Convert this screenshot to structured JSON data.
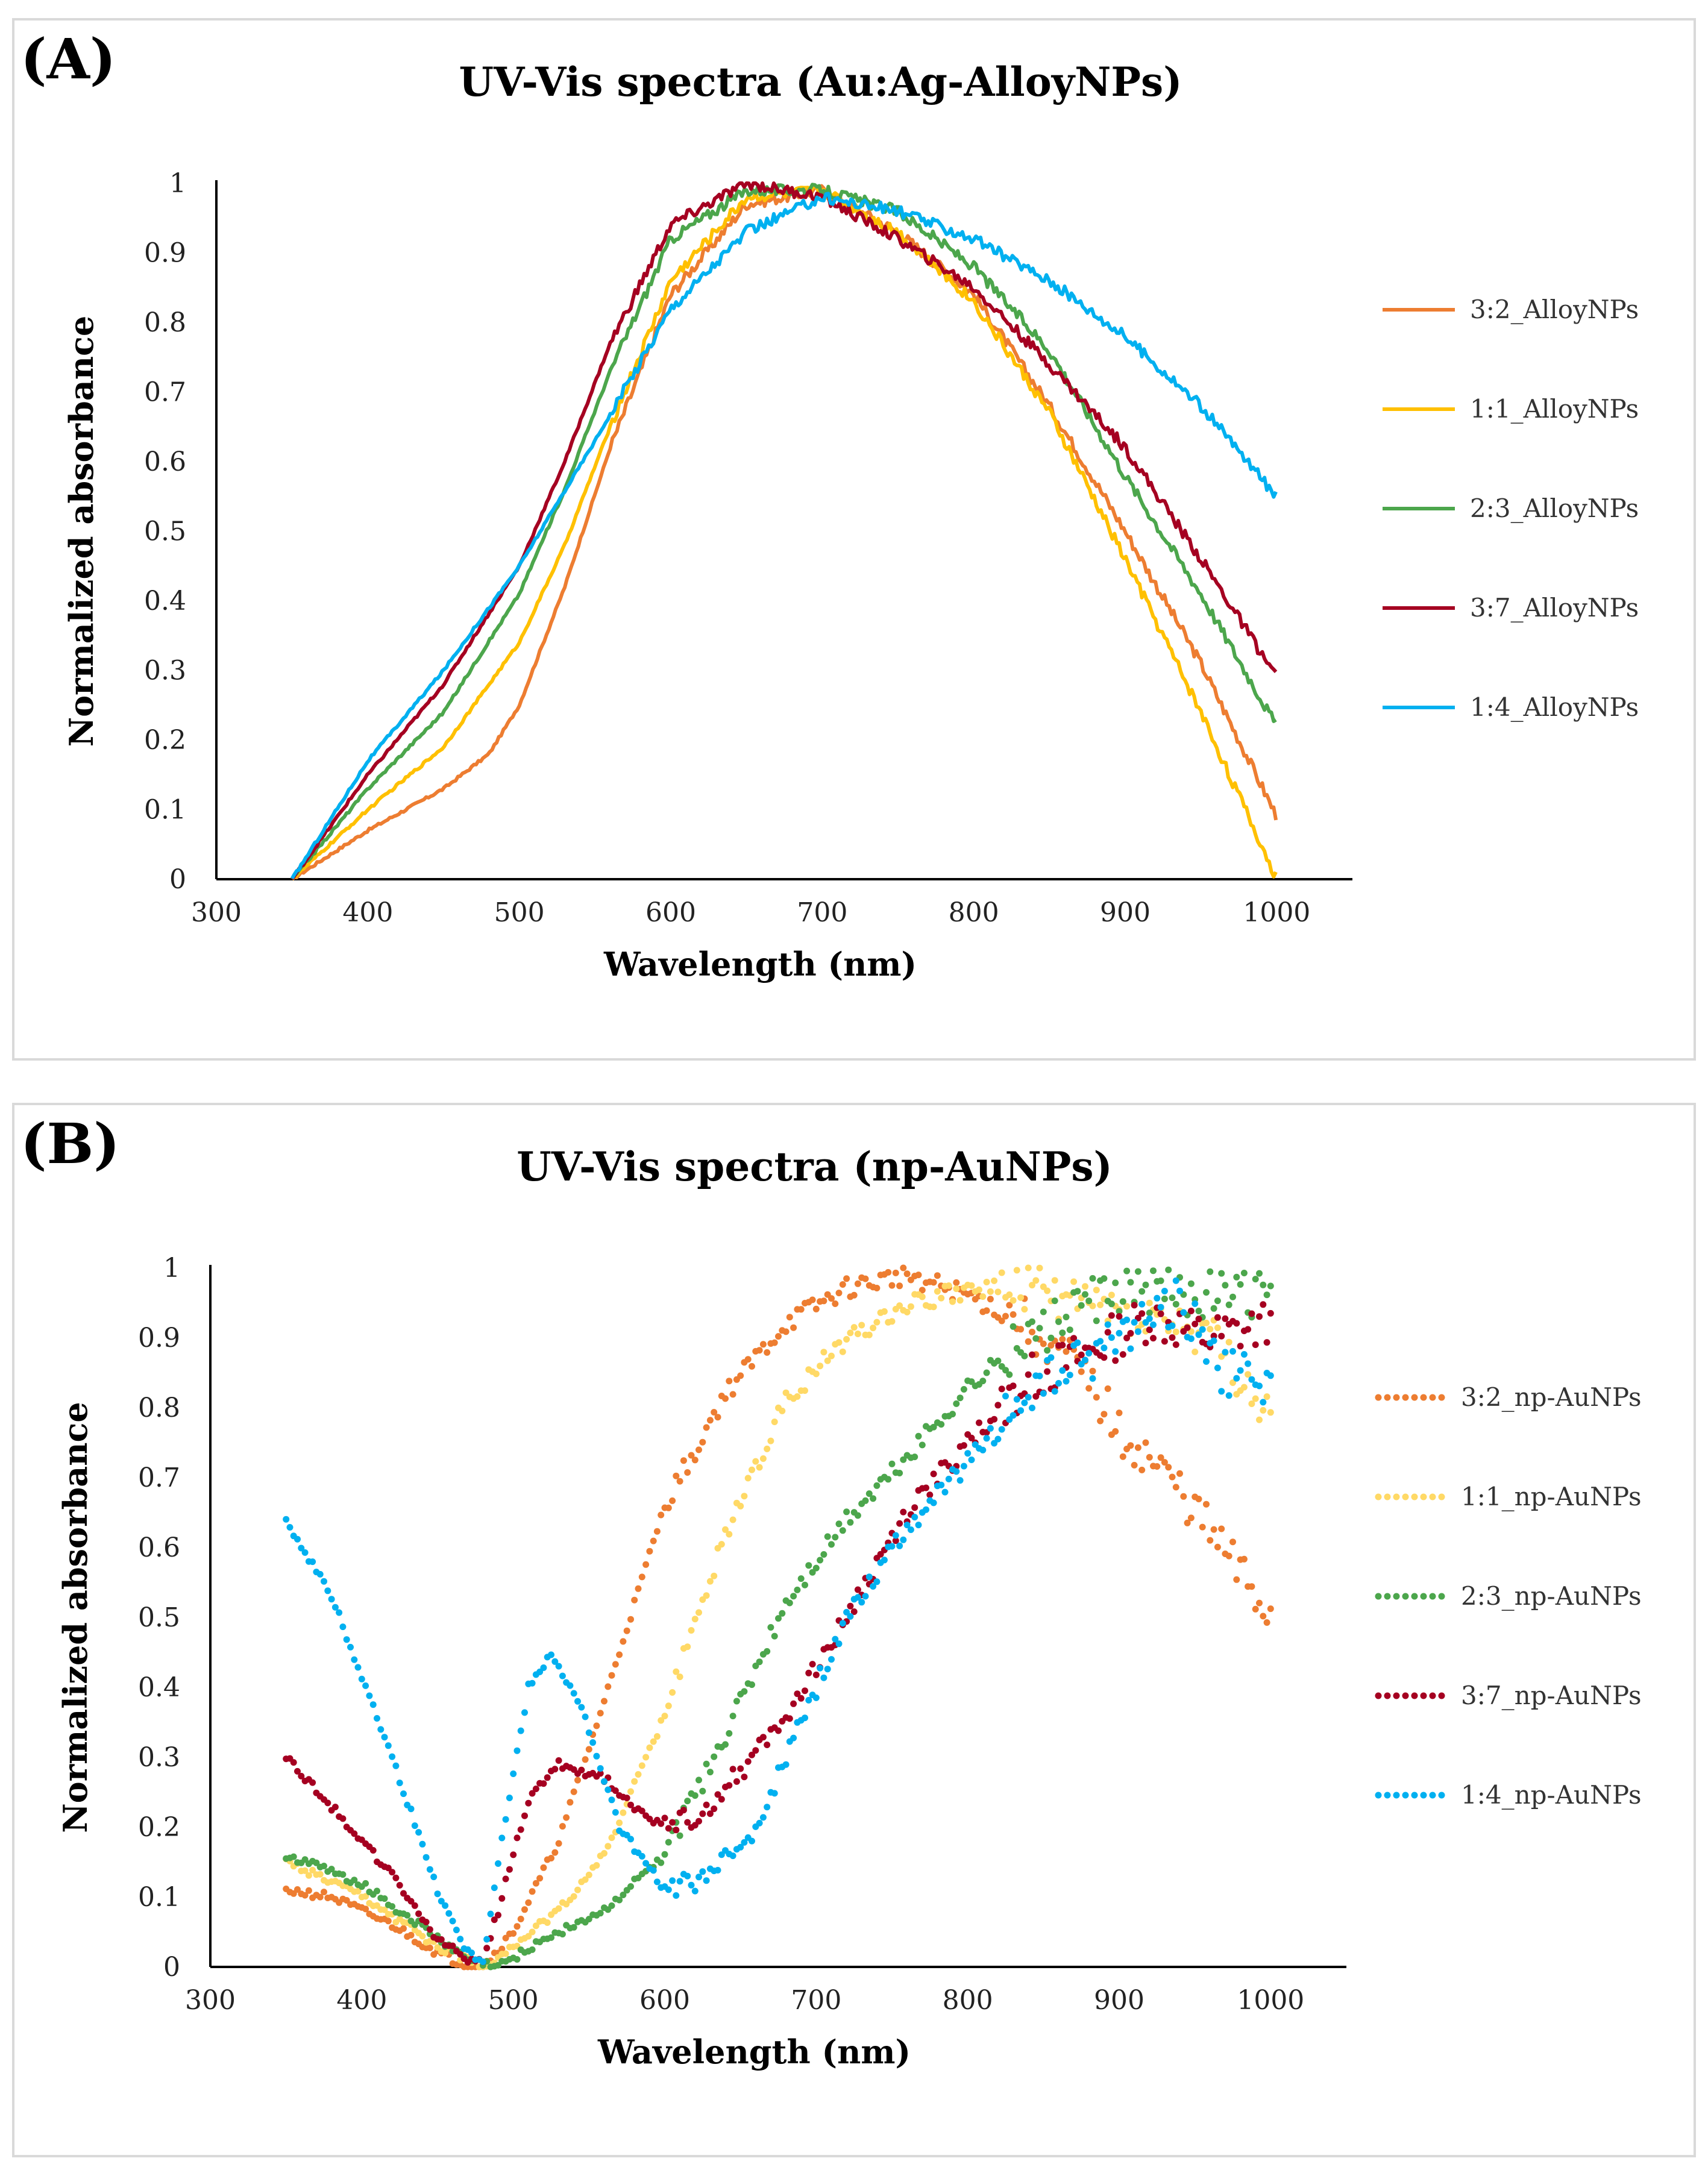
{
  "chart_data": [
    {
      "panel_label": "(A)",
      "type": "line",
      "title": "UV-Vis spectra (Au:Ag-AlloyNPs)",
      "xlabel": "Wavelength (nm)",
      "ylabel": "Normalized absorbance",
      "xlim": [
        300,
        1050
      ],
      "ylim": [
        0,
        1
      ],
      "xticks": [
        300,
        400,
        500,
        600,
        700,
        800,
        900,
        1000
      ],
      "yticks": [
        0,
        0.1,
        0.2,
        0.3,
        0.4,
        0.5,
        0.6,
        0.7,
        0.8,
        0.9,
        1
      ],
      "legend_position": "right",
      "series": [
        {
          "name": "3:2_AlloyNPs",
          "color": "#ED7D31",
          "style": "solid",
          "x": [
            350,
            400,
            450,
            480,
            500,
            530,
            560,
            600,
            650,
            700,
            750,
            800,
            850,
            900,
            950,
            1000
          ],
          "y": [
            0,
            0.07,
            0.13,
            0.18,
            0.25,
            0.42,
            0.62,
            0.84,
            0.97,
            0.99,
            0.93,
            0.84,
            0.68,
            0.5,
            0.31,
            0.09
          ]
        },
        {
          "name": "1:1_AlloyNPs",
          "color": "#FFC000",
          "style": "solid",
          "x": [
            350,
            400,
            450,
            500,
            530,
            560,
            600,
            650,
            700,
            750,
            800,
            850,
            900,
            950,
            1000
          ],
          "y": [
            0,
            0.1,
            0.19,
            0.34,
            0.48,
            0.65,
            0.86,
            0.98,
            0.99,
            0.93,
            0.83,
            0.67,
            0.46,
            0.24,
            0.0
          ]
        },
        {
          "name": "2:3_AlloyNPs",
          "color": "#4CA64C",
          "style": "solid",
          "x": [
            350,
            400,
            450,
            500,
            530,
            560,
            600,
            650,
            700,
            750,
            800,
            850,
            900,
            950,
            1000
          ],
          "y": [
            0,
            0.13,
            0.24,
            0.41,
            0.56,
            0.73,
            0.92,
            0.99,
            0.99,
            0.96,
            0.88,
            0.76,
            0.58,
            0.41,
            0.22
          ]
        },
        {
          "name": "3:7_AlloyNPs",
          "color": "#A50021",
          "style": "solid",
          "x": [
            350,
            400,
            450,
            500,
            530,
            560,
            600,
            650,
            700,
            750,
            800,
            850,
            900,
            950,
            1000
          ],
          "y": [
            0,
            0.15,
            0.28,
            0.45,
            0.6,
            0.77,
            0.94,
            1.0,
            0.98,
            0.92,
            0.85,
            0.74,
            0.62,
            0.46,
            0.29
          ]
        },
        {
          "name": "1:4_AlloyNPs",
          "color": "#00B0F0",
          "style": "solid",
          "x": [
            350,
            400,
            450,
            500,
            550,
            600,
            650,
            700,
            750,
            800,
            850,
            900,
            950,
            1000
          ],
          "y": [
            0,
            0.17,
            0.3,
            0.45,
            0.63,
            0.82,
            0.93,
            0.98,
            0.96,
            0.92,
            0.86,
            0.78,
            0.68,
            0.55
          ]
        }
      ]
    },
    {
      "panel_label": "(B)",
      "type": "scatter",
      "title": "UV-Vis spectra (np-AuNPs)",
      "xlabel": "Wavelength (nm)",
      "ylabel": "Normalized absorbance",
      "xlim": [
        300,
        1050
      ],
      "ylim": [
        0,
        1
      ],
      "xticks": [
        300,
        400,
        500,
        600,
        700,
        800,
        900,
        1000
      ],
      "yticks": [
        0,
        0.1,
        0.2,
        0.3,
        0.4,
        0.5,
        0.6,
        0.7,
        0.8,
        0.9,
        1
      ],
      "legend_position": "right",
      "series": [
        {
          "name": "3:2_np-AuNPs",
          "color": "#ED7D31",
          "style": "dotted",
          "x": [
            350,
            380,
            420,
            450,
            470,
            480,
            500,
            530,
            560,
            600,
            640,
            680,
            720,
            760,
            800,
            840,
            870,
            900,
            940,
            980,
            1000
          ],
          "y": [
            0.11,
            0.1,
            0.06,
            0.02,
            0.0,
            0.0,
            0.05,
            0.18,
            0.38,
            0.66,
            0.82,
            0.92,
            0.97,
            0.99,
            0.96,
            0.92,
            0.86,
            0.77,
            0.68,
            0.56,
            0.5
          ]
        },
        {
          "name": "1:1_np-AuNPs",
          "color": "#FFD966",
          "style": "dotted",
          "x": [
            350,
            400,
            450,
            480,
            500,
            530,
            560,
            600,
            640,
            680,
            720,
            760,
            800,
            840,
            880,
            920,
            960,
            1000
          ],
          "y": [
            0.15,
            0.1,
            0.03,
            0.0,
            0.03,
            0.08,
            0.16,
            0.36,
            0.62,
            0.81,
            0.9,
            0.95,
            0.97,
            0.97,
            0.95,
            0.93,
            0.9,
            0.78
          ]
        },
        {
          "name": "2:3_np-AuNPs",
          "color": "#4CA64C",
          "style": "dotted",
          "x": [
            350,
            400,
            450,
            470,
            490,
            520,
            560,
            600,
            640,
            680,
            720,
            760,
            800,
            840,
            880,
            920,
            960,
            1000
          ],
          "y": [
            0.16,
            0.12,
            0.04,
            0.01,
            0.0,
            0.04,
            0.08,
            0.16,
            0.33,
            0.52,
            0.64,
            0.73,
            0.83,
            0.9,
            0.95,
            0.97,
            0.96,
            0.96
          ]
        },
        {
          "name": "3:7_np-AuNPs",
          "color": "#A50021",
          "style": "dotted",
          "x": [
            350,
            380,
            420,
            450,
            470,
            480,
            490,
            510,
            530,
            560,
            590,
            620,
            650,
            680,
            720,
            760,
            800,
            840,
            880,
            920,
            960,
            1000
          ],
          "y": [
            0.3,
            0.23,
            0.13,
            0.04,
            0.01,
            0.01,
            0.08,
            0.24,
            0.29,
            0.27,
            0.21,
            0.21,
            0.28,
            0.36,
            0.5,
            0.65,
            0.75,
            0.84,
            0.88,
            0.93,
            0.9,
            0.92
          ]
        },
        {
          "name": "1:4_np-AuNPs",
          "color": "#00B0F0",
          "style": "dotted",
          "x": [
            350,
            380,
            420,
            450,
            470,
            480,
            490,
            510,
            525,
            545,
            570,
            600,
            630,
            660,
            690,
            720,
            760,
            800,
            840,
            880,
            910,
            940,
            970,
            1000
          ],
          "y": [
            0.64,
            0.53,
            0.3,
            0.11,
            0.02,
            0.01,
            0.15,
            0.4,
            0.45,
            0.37,
            0.2,
            0.11,
            0.13,
            0.2,
            0.35,
            0.5,
            0.63,
            0.72,
            0.82,
            0.87,
            0.92,
            0.95,
            0.85,
            0.83
          ]
        }
      ]
    }
  ]
}
